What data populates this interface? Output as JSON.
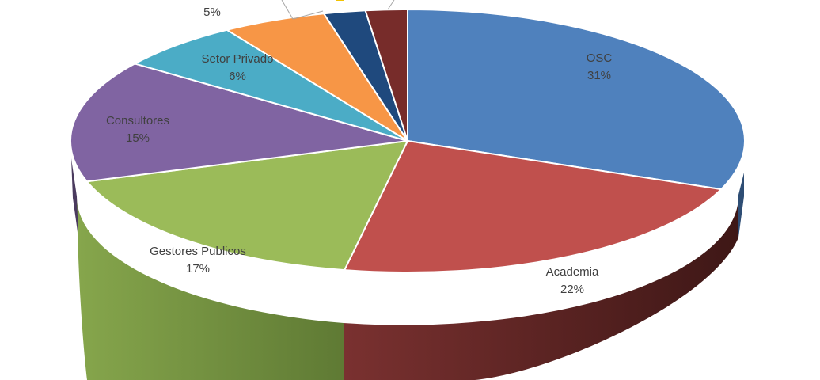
{
  "chart_data": {
    "type": "pie",
    "style": "3d-exploded-view",
    "slices": [
      {
        "name": "OSC",
        "value": 31,
        "label": "31%",
        "color": "#4F81BD",
        "side_color": "#2E4D74"
      },
      {
        "name": "Academia",
        "value": 22,
        "label": "22%",
        "color": "#C0504D",
        "side_color": "#4E1F1E"
      },
      {
        "name": "Gestores Publicos",
        "value": 17,
        "label": "17%",
        "color": "#9BBB59",
        "side_color": "#5F7A34"
      },
      {
        "name": "Consultores",
        "value": 15,
        "label": "15%",
        "color": "#8064A2",
        "side_color": "#4A3A5E"
      },
      {
        "name": "Setor Privado",
        "value": 6,
        "label": "6%",
        "color": "#4BACC6",
        "side_color": "#2A6574"
      },
      {
        "name": "",
        "value": 5,
        "label": "5%",
        "color": "#F79646",
        "side_color": "#9A5A26"
      },
      {
        "name": "",
        "value": 2,
        "label": "",
        "color": "#1F497D",
        "side_color": "#10284A"
      },
      {
        "name": "",
        "value": 2,
        "label": "",
        "color": "#772C2A",
        "side_color": "#3F1615"
      }
    ],
    "leader_line_color": "#A6A6A6",
    "label_color": "#404040"
  }
}
